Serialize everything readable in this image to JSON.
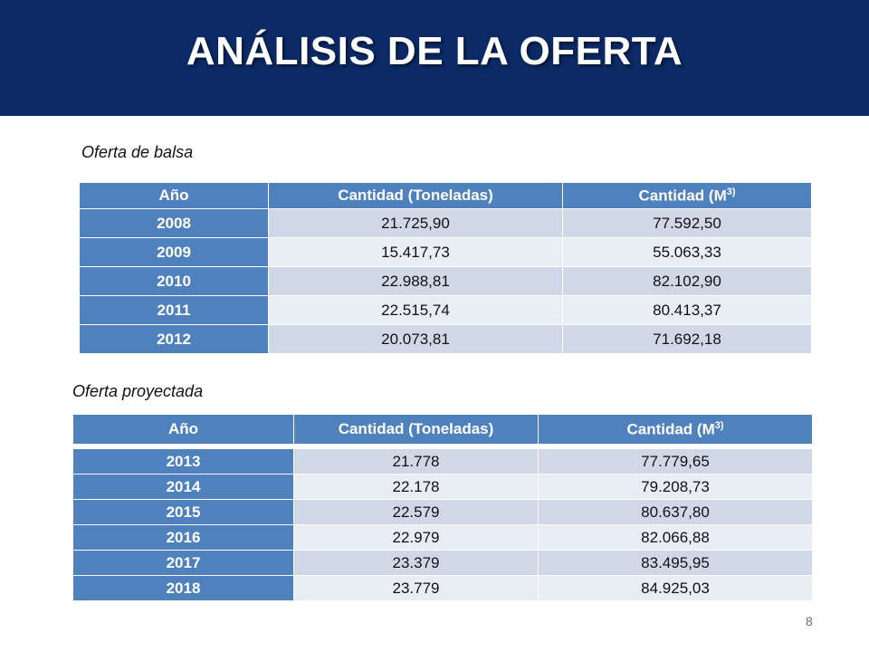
{
  "title": "ANÁLISIS DE LA OFERTA",
  "section1": {
    "caption": "Oferta de balsa",
    "headers": {
      "year": "Año",
      "tons": "Cantidad (Toneladas)",
      "m3": "Cantidad (M",
      "m3_sup": "3)"
    },
    "rows": [
      {
        "year": "2008",
        "tons": "21.725,90",
        "m3": "77.592,50"
      },
      {
        "year": "2009",
        "tons": "15.417,73",
        "m3": "55.063,33"
      },
      {
        "year": "2010",
        "tons": "22.988,81",
        "m3": "82.102,90"
      },
      {
        "year": "2011",
        "tons": "22.515,74",
        "m3": "80.413,37"
      },
      {
        "year": "2012",
        "tons": "20.073,81",
        "m3": "71.692,18"
      }
    ]
  },
  "section2": {
    "caption": "Oferta proyectada",
    "headers": {
      "year": "Año",
      "tons": "Cantidad (Toneladas)",
      "m3": "Cantidad (M",
      "m3_sup": "3)"
    },
    "rows": [
      {
        "year": "2013",
        "tons": "21.778",
        "m3": "77.779,65"
      },
      {
        "year": "2014",
        "tons": "22.178",
        "m3": "79.208,73"
      },
      {
        "year": "2015",
        "tons": "22.579",
        "m3": "80.637,80"
      },
      {
        "year": "2016",
        "tons": "22.979",
        "m3": "82.066,88"
      },
      {
        "year": "2017",
        "tons": "23.379",
        "m3": "83.495,95"
      },
      {
        "year": "2018",
        "tons": "23.779",
        "m3": "84.925,03"
      }
    ]
  },
  "page_number": "8"
}
